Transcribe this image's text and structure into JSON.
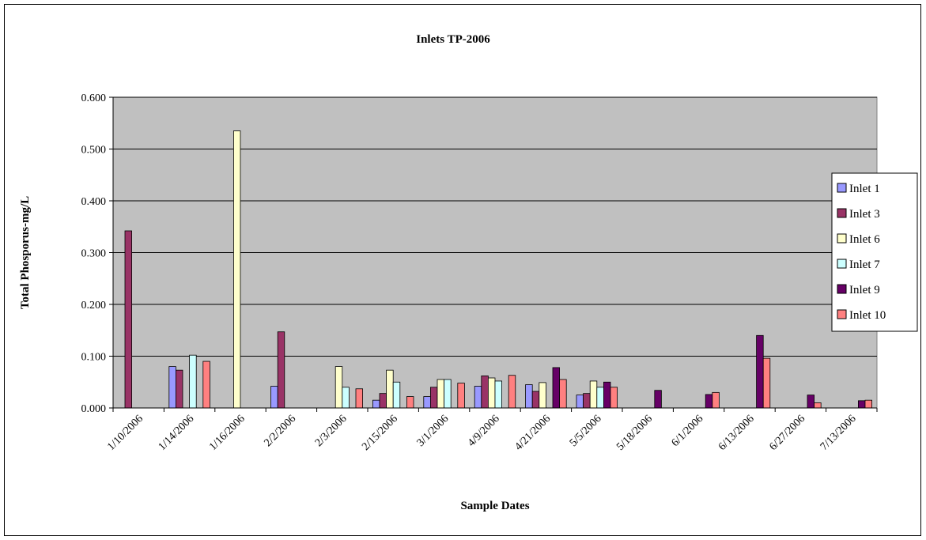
{
  "chart_data": {
    "type": "bar",
    "title": "Inlets TP-2006",
    "xlabel": "Sample Dates",
    "ylabel": "Total Phosporus-mg/L",
    "ylim": [
      0,
      0.6
    ],
    "yticks": [
      "0.000",
      "0.100",
      "0.200",
      "0.300",
      "0.400",
      "0.500",
      "0.600"
    ],
    "grid": true,
    "legend_position": "right",
    "plot_background": "#C0C0C0",
    "categories": [
      "1/10/2006",
      "1/14/2006",
      "1/16/2006",
      "2/2/2006",
      "2/3/2006",
      "2/15/2006",
      "3/1/2006",
      "4/9/2006",
      "4/21/2006",
      "5/5/2006",
      "5/18/2006",
      "6/1/2006",
      "6/13/2006",
      "6/27/2006",
      "7/13/2006"
    ],
    "series": [
      {
        "name": "Inlet 1",
        "color": "#9999FF",
        "values": [
          null,
          0.08,
          null,
          0.042,
          null,
          0.015,
          0.022,
          0.042,
          0.045,
          0.025,
          null,
          null,
          null,
          null,
          null
        ]
      },
      {
        "name": "Inlet 3",
        "color": "#993366",
        "values": [
          0.342,
          0.073,
          null,
          0.147,
          null,
          0.028,
          0.04,
          0.062,
          0.032,
          0.028,
          null,
          null,
          null,
          null,
          null
        ]
      },
      {
        "name": "Inlet 6",
        "color": "#FFFFCC",
        "values": [
          null,
          null,
          0.535,
          null,
          0.08,
          0.073,
          0.055,
          0.058,
          0.049,
          0.052,
          null,
          null,
          null,
          null,
          null
        ]
      },
      {
        "name": "Inlet 7",
        "color": "#CCFFFF",
        "values": [
          null,
          0.102,
          null,
          null,
          0.04,
          0.05,
          0.055,
          0.052,
          null,
          0.04,
          null,
          null,
          null,
          null,
          null
        ]
      },
      {
        "name": "Inlet 9",
        "color": "#660066",
        "values": [
          null,
          null,
          null,
          null,
          null,
          null,
          null,
          null,
          0.078,
          0.05,
          0.034,
          0.026,
          0.14,
          0.025,
          0.014
        ]
      },
      {
        "name": "Inlet 10",
        "color": "#FF8080",
        "values": [
          null,
          0.09,
          null,
          null,
          0.037,
          0.022,
          0.048,
          0.063,
          0.055,
          0.04,
          null,
          0.03,
          0.096,
          0.01,
          0.015
        ]
      }
    ]
  }
}
